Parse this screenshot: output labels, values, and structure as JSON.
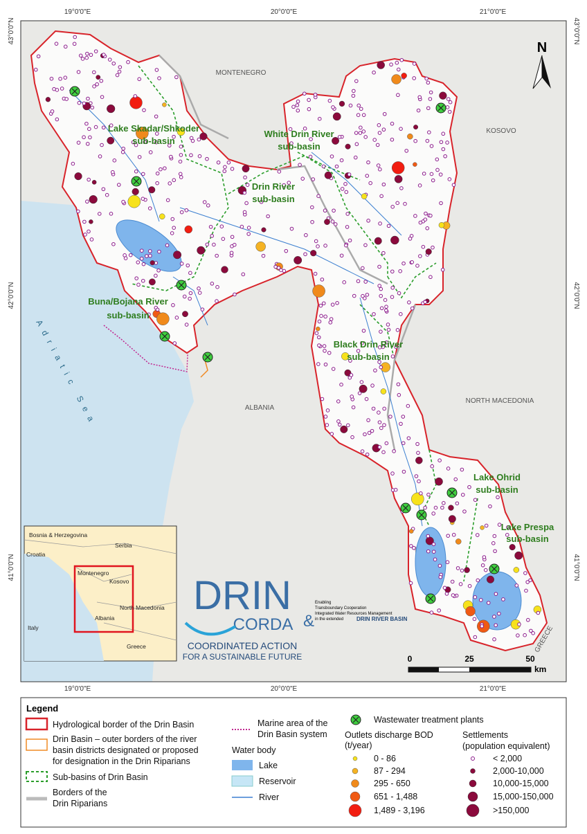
{
  "map": {
    "graticule": {
      "lon": [
        "19°0'0\"E",
        "20°0'0\"E",
        "21°0'0\"E"
      ],
      "lat": [
        "43°0'0\"N",
        "42°0'0\"N",
        "41°0'0\"N"
      ]
    },
    "countries": [
      "MONTENEGRO",
      "KOSOVO",
      "ALBANIA",
      "NORTH MACEDONIA",
      "GREECE"
    ],
    "sea": "Adriatic Sea",
    "sub_basins": [
      [
        "Lake Skadar/Shkoder",
        "sub-basin"
      ],
      [
        "White Drin River",
        "sub-basin"
      ],
      [
        "Drin River",
        "sub-basin"
      ],
      [
        "Buna/Bojana River",
        "sub-basin"
      ],
      [
        "Black Drin River",
        "sub-basin"
      ],
      [
        "Lake Ohrid",
        "sub-basin"
      ],
      [
        "Lake Prespa",
        "sub-basin"
      ]
    ],
    "north": "N",
    "scale": {
      "ticks": [
        0,
        25,
        50
      ],
      "unit": "km"
    }
  },
  "inset": {
    "labels": [
      "Bosnia & Herzegovina",
      "Serbia",
      "Croatia",
      "Montenegro",
      "Kosovo",
      "Albania",
      "North Macedonia",
      "Italy",
      "Greece"
    ]
  },
  "logo": {
    "name": "DRIN",
    "sub": "CORDA",
    "slogan": [
      "COORDINATED ACTION",
      "FOR A SUSTAINABLE FUTURE"
    ],
    "amp": "&",
    "project": [
      "Enabling",
      "Transboundary Cooperation",
      "Integrated Water Resources Management",
      "in the extended"
    ],
    "basin": "DRIN RIVER BASIN"
  },
  "legend": {
    "title": "Legend",
    "hydro_border": "Hydrological border of the Drin Basin",
    "outer_borders": [
      "Drin Basin – outer borders of the river",
      "basin districts designated or proposed",
      "for designation in the Drin Riparians"
    ],
    "sub_basins": "Sub-basins of Drin Basin",
    "riparian_borders": [
      "Borders of the",
      "Drin Riparians"
    ],
    "marine": [
      "Marine area of the",
      "Drin Basin system"
    ],
    "water_body": "Water body",
    "lake": "Lake",
    "reservoir": "Reservoir",
    "river": "River",
    "wwtp": "Wastewater treatment plants",
    "bod_title": [
      "Outlets discharge BOD",
      "(t/year)"
    ],
    "bod_classes": [
      "0 - 86",
      "87 - 294",
      "295 - 650",
      "651 - 1,488",
      "1,489 - 3,196"
    ],
    "settlements_title": [
      "Settlements",
      "(population equivalent)"
    ],
    "settlement_classes": [
      "< 2,000",
      "2,000-10,000",
      "10,000-15,000",
      "15,000-150,000",
      ">150,000"
    ]
  }
}
